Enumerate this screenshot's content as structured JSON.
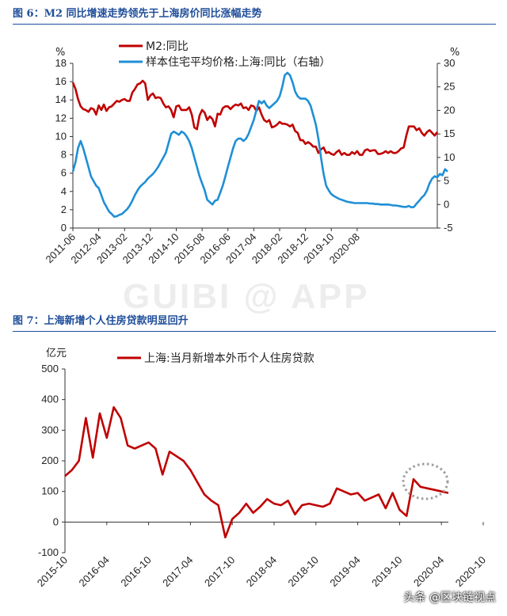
{
  "figure6": {
    "title": "图 6：M2 同比增速走势领先于上海房价同比涨幅走势",
    "left_unit": "%",
    "right_unit": "%"
  },
  "figure7": {
    "title": "图 7：上海新增个人住房贷款明显回升",
    "y_unit": "亿元"
  },
  "watermark": "GUIBI @ APP",
  "attribution": "头条 @区块链视点",
  "colors": {
    "m2": "#c00000",
    "house": "#1f8fd6",
    "loans": "#c00000",
    "title": "#1f4e9a",
    "circle": "#9e9e9e"
  },
  "chart_data": [
    {
      "type": "line",
      "title": "图 6：M2 同比增速走势领先于上海房价同比涨幅走势",
      "x_ticks": [
        "2011-06",
        "2012-04",
        "2013-02",
        "2013-12",
        "2014-10",
        "2015-08",
        "2016-06",
        "2017-04",
        "2018-02",
        "2018-12",
        "2019-10",
        "2020-08"
      ],
      "x_start": "2011-06",
      "ylim_left": [
        0,
        18
      ],
      "yticks_left": [
        0,
        2,
        4,
        6,
        8,
        10,
        12,
        14,
        16,
        18
      ],
      "ylim_right": [
        -5,
        30
      ],
      "yticks_right": [
        -5,
        0,
        5,
        10,
        15,
        20,
        25,
        30
      ],
      "legend": [
        "M2:同比",
        "样本住宅平均价格:上海:同比（右轴）"
      ],
      "series": [
        {
          "name": "M2:同比",
          "axis": "left",
          "values": [
            15.9,
            15.2,
            14.1,
            13.3,
            13.0,
            12.9,
            12.7,
            13.1,
            13.0,
            12.4,
            13.4,
            12.9,
            13.5,
            12.8,
            13.2,
            13.3,
            13.6,
            13.9,
            13.8,
            14.0,
            14.1,
            13.9,
            13.9,
            14.8,
            15.2,
            15.7,
            15.8,
            16.1,
            15.8,
            14.0,
            14.5,
            14.7,
            14.2,
            14.3,
            14.2,
            13.6,
            13.2,
            13.3,
            12.9,
            12.1,
            13.3,
            13.4,
            12.9,
            12.9,
            12.9,
            13.2,
            12.4,
            11.0,
            10.8,
            12.3,
            12.9,
            12.6,
            11.8,
            12.2,
            11.9,
            11.1,
            12.5,
            12.4,
            13.1,
            13.3,
            13.3,
            13.0,
            13.3,
            13.5,
            13.4,
            13.6,
            13.1,
            13.2,
            12.9,
            13.4,
            13.3,
            12.8,
            13.2,
            12.4,
            11.8,
            11.6,
            11.8,
            11.0,
            11.1,
            11.3,
            11.6,
            11.4,
            11.4,
            11.3,
            11.1,
            11.3,
            10.6,
            10.4,
            9.6,
            9.6,
            9.2,
            9.4,
            9.2,
            8.9,
            8.9,
            8.2,
            8.6,
            8.8,
            8.2,
            8.3,
            8.1,
            8.0,
            8.3,
            8.5,
            8.0,
            8.2,
            8.0,
            8.0,
            8.3,
            8.1,
            8.4,
            8.0,
            8.0,
            8.5,
            8.6,
            8.4,
            8.5,
            8.5,
            8.1,
            8.1,
            8.2,
            8.4,
            8.2,
            8.4,
            8.2,
            8.2,
            8.4,
            8.7,
            8.8,
            10.1,
            11.1,
            11.1,
            11.1,
            10.7,
            10.9,
            10.4,
            10.1,
            10.5,
            10.7,
            10.4,
            10.1,
            10.5
          ]
        },
        {
          "name": "样本住宅平均价格:上海:同比（右轴）",
          "axis": "right",
          "values": [
            7.0,
            9.0,
            12.0,
            13.5,
            12.0,
            10.0,
            8.0,
            6.0,
            5.0,
            4.0,
            3.5,
            2.0,
            0.5,
            -0.5,
            -1.5,
            -2.0,
            -2.6,
            -2.5,
            -2.2,
            -2.0,
            -1.5,
            -1.0,
            -0.2,
            0.8,
            2.0,
            3.0,
            3.8,
            4.3,
            4.8,
            5.5,
            6.0,
            6.5,
            7.2,
            8.0,
            9.0,
            10.0,
            11.0,
            13.0,
            15.0,
            15.5,
            15.2,
            14.8,
            15.5,
            15.2,
            14.5,
            13.5,
            12.0,
            10.0,
            8.0,
            6.0,
            4.5,
            3.0,
            1.0,
            0.5,
            0.0,
            0.8,
            1.0,
            2.5,
            4.0,
            6.0,
            8.0,
            10.0,
            12.0,
            13.5,
            14.0,
            14.0,
            13.5,
            14.0,
            15.0,
            16.5,
            18.0,
            20.0,
            22.0,
            21.5,
            22.0,
            21.0,
            20.5,
            21.0,
            21.5,
            22.0,
            23.0,
            25.0,
            27.5,
            28.0,
            27.5,
            26.0,
            24.0,
            23.0,
            22.5,
            22.5,
            22.5,
            22.0,
            21.0,
            19.0,
            17.0,
            14.0,
            10.0,
            6.5,
            4.0,
            3.0,
            2.2,
            1.8,
            1.5,
            1.2,
            1.0,
            0.8,
            0.6,
            0.5,
            0.4,
            0.3,
            0.3,
            0.3,
            0.3,
            0.3,
            0.3,
            0.2,
            0.2,
            0.1,
            0.1,
            0.0,
            0.0,
            0.0,
            0.0,
            -0.1,
            -0.2,
            -0.2,
            -0.3,
            -0.4,
            -0.5,
            -0.5,
            -0.3,
            -0.6,
            -0.5,
            0.2,
            0.8,
            1.5,
            2.0,
            3.0,
            4.5,
            5.5,
            6.0,
            5.8,
            6.5,
            6.2,
            7.5,
            7.0
          ]
        }
      ]
    },
    {
      "type": "line",
      "title": "图 7：上海新增个人住房贷款明显回升",
      "x_ticks": [
        "2015-10",
        "2016-04",
        "2016-10",
        "2017-04",
        "2017-10",
        "2018-04",
        "2018-10",
        "2019-04",
        "2019-10",
        "2020-04",
        "2020-10"
      ],
      "x_start": "2015-10",
      "ylim": [
        -100,
        500
      ],
      "yticks": [
        -100,
        0,
        100,
        200,
        300,
        400,
        500
      ],
      "ylabel": "亿元",
      "legend": [
        "上海:当月新增本外币个人住房贷款"
      ],
      "annotation": "dotted circle around 2020-06 to 2020-10 values",
      "series": [
        {
          "name": "上海:当月新增本外币个人住房贷款",
          "values": [
            150,
            170,
            200,
            340,
            210,
            355,
            275,
            375,
            340,
            250,
            240,
            250,
            260,
            240,
            155,
            230,
            215,
            200,
            170,
            130,
            90,
            70,
            55,
            -50,
            10,
            30,
            60,
            30,
            50,
            75,
            60,
            55,
            70,
            25,
            55,
            60,
            55,
            50,
            60,
            110,
            100,
            90,
            95,
            70,
            80,
            90,
            45,
            95,
            40,
            20,
            140,
            115,
            110,
            105,
            100,
            95
          ]
        }
      ]
    }
  ]
}
